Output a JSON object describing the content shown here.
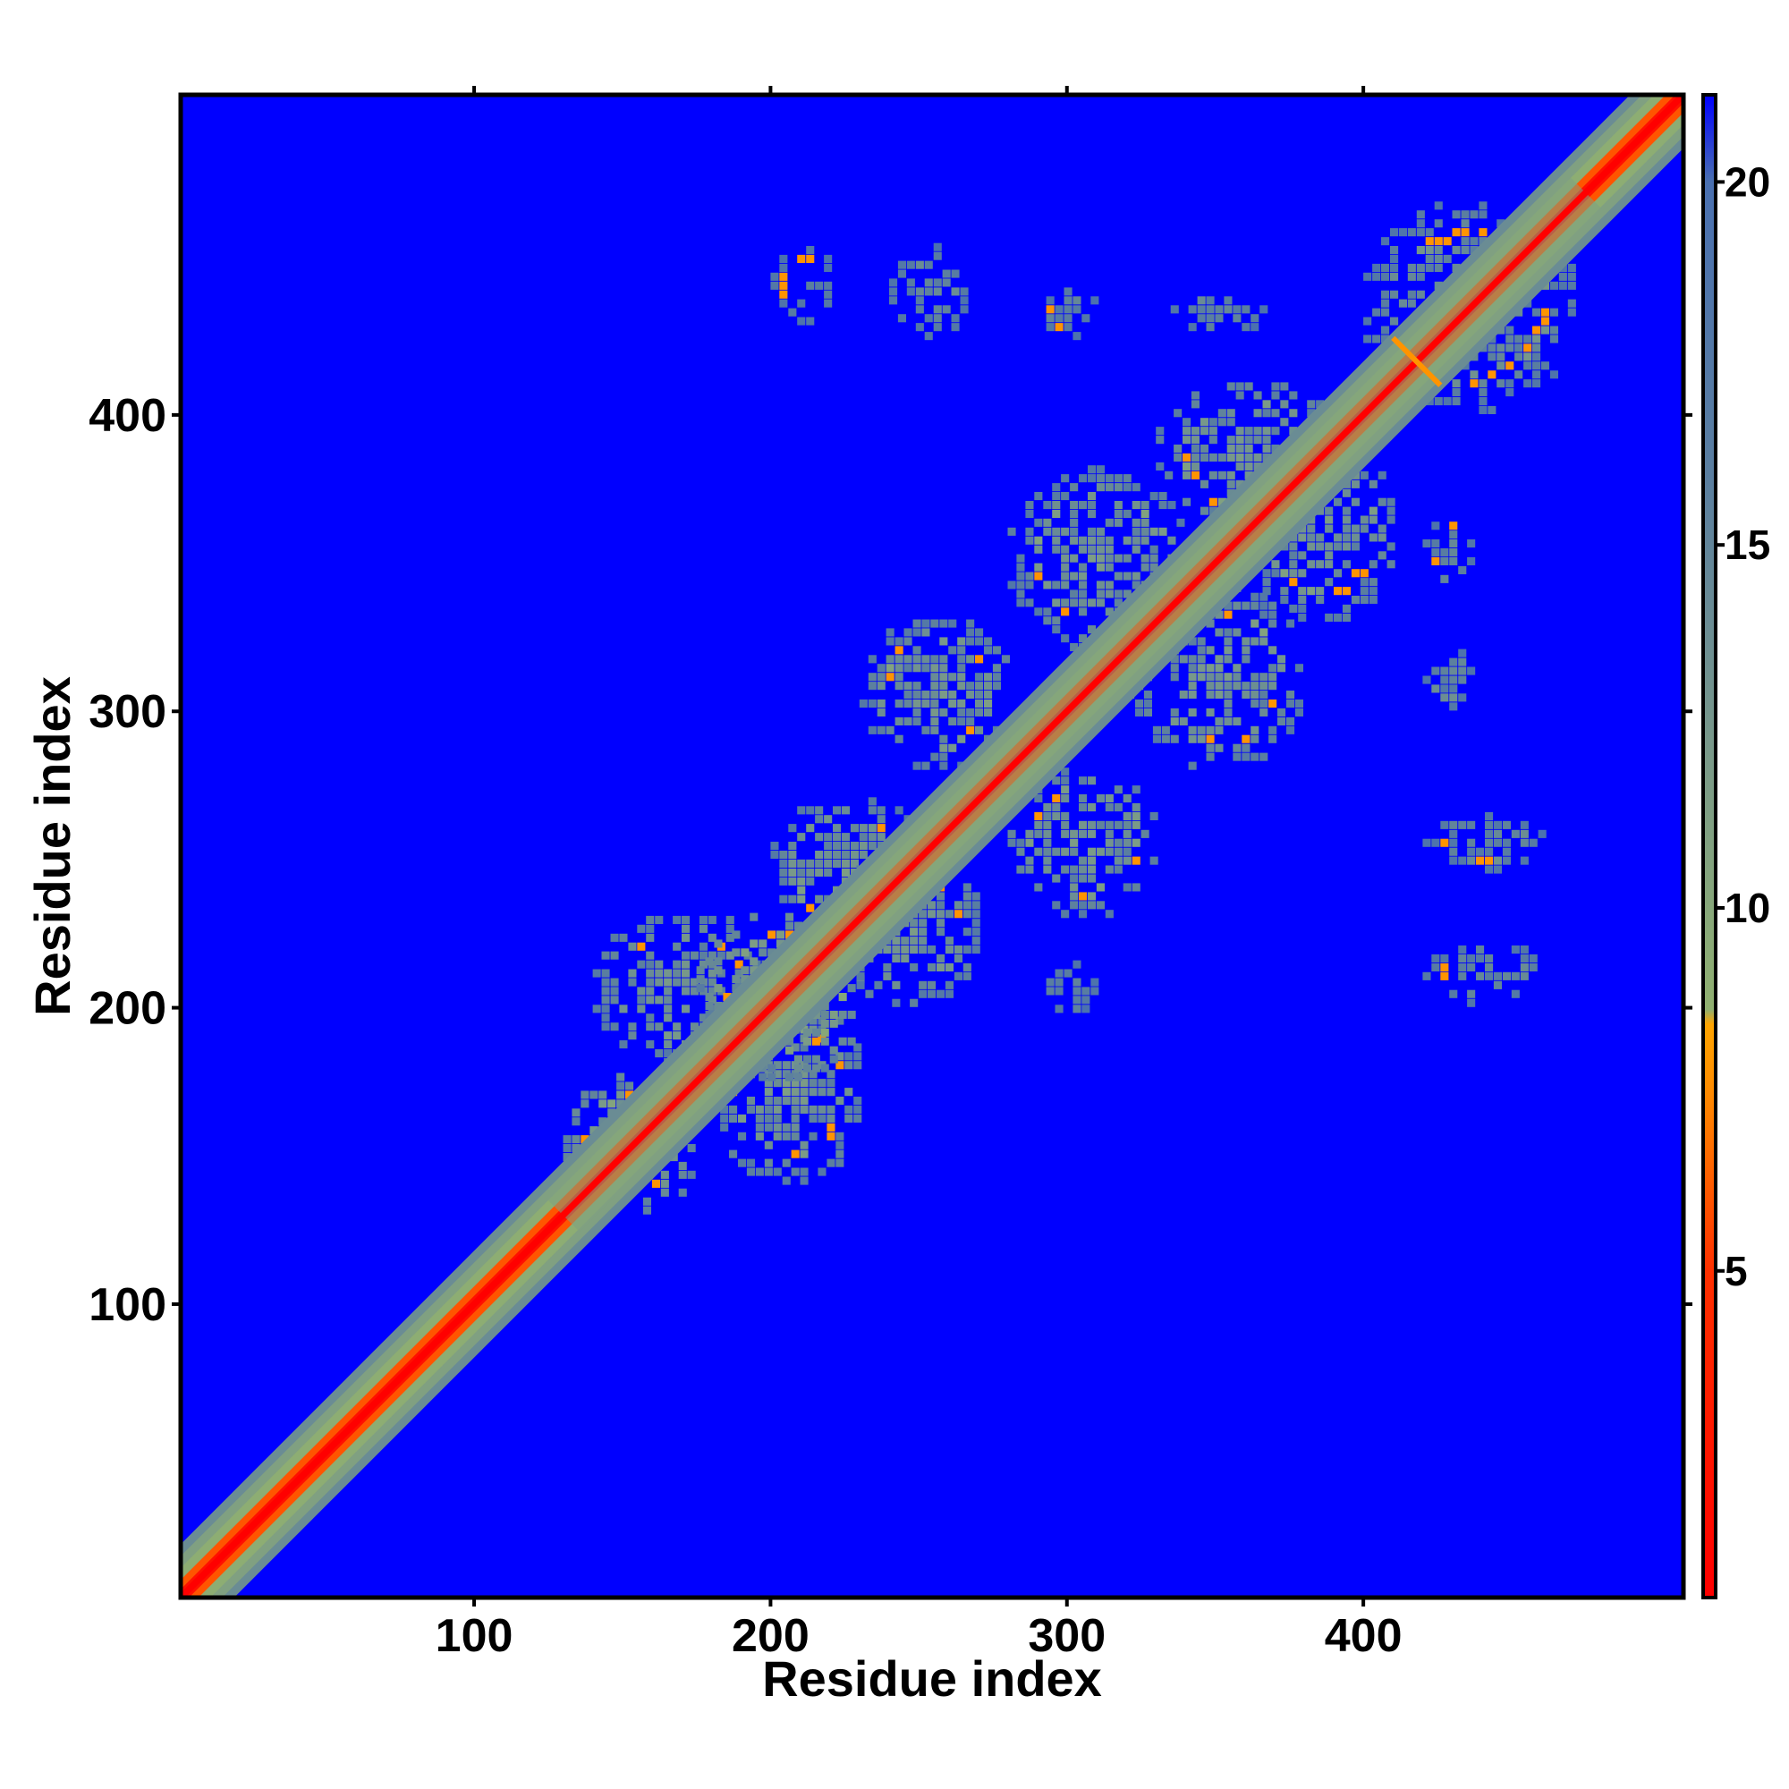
{
  "chart_data": {
    "type": "heatmap",
    "title": "",
    "xlabel": "Residue index",
    "ylabel": "Residue index",
    "xlim": [
      1,
      508
    ],
    "ylim": [
      1,
      508
    ],
    "x_ticks": [
      "100",
      "200",
      "300",
      "400"
    ],
    "y_ticks": [
      "100",
      "200",
      "300",
      "400"
    ],
    "x_tick_values": [
      100,
      200,
      300,
      400
    ],
    "y_tick_values": [
      100,
      200,
      300,
      400
    ],
    "colorbar": {
      "range": [
        0.5,
        21.2
      ],
      "ticks": [
        "5",
        "10",
        "15",
        "20"
      ],
      "tick_values": [
        5,
        10,
        15,
        20
      ],
      "colors": [
        {
          "value": 0.5,
          "color": "#ff0000"
        },
        {
          "value": 5,
          "color": "#ff3000"
        },
        {
          "value": 7.5,
          "color": "#ff8c00"
        },
        {
          "value": 8.4,
          "color": "#ffa500"
        },
        {
          "value": 8.6,
          "color": "#90b070"
        },
        {
          "value": 12,
          "color": "#7a9a88"
        },
        {
          "value": 16,
          "color": "#5a7ea0"
        },
        {
          "value": 20,
          "color": "#4a70b0"
        },
        {
          "value": 21.2,
          "color": "#0000ff"
        }
      ]
    },
    "background_value": 21.2,
    "background_color": "#0000ff",
    "diagonal_value": 0.5,
    "contact_regions": [
      {
        "x": [
          130,
          175
        ],
        "y": [
          130,
          175
        ],
        "level": 11
      },
      {
        "x": [
          140,
          200
        ],
        "y": [
          180,
          230
        ],
        "level": 12
      },
      {
        "x": [
          180,
          230
        ],
        "y": [
          140,
          200
        ],
        "level": 12
      },
      {
        "x": [
          175,
          230
        ],
        "y": [
          175,
          230
        ],
        "level": 11
      },
      {
        "x": [
          200,
          250
        ],
        "y": [
          220,
          270
        ],
        "level": 12
      },
      {
        "x": [
          220,
          270
        ],
        "y": [
          200,
          250
        ],
        "level": 12
      },
      {
        "x": [
          230,
          280
        ],
        "y": [
          280,
          330
        ],
        "level": 12
      },
      {
        "x": [
          280,
          330
        ],
        "y": [
          230,
          280
        ],
        "level": 12
      },
      {
        "x": [
          280,
          340
        ],
        "y": [
          320,
          380
        ],
        "level": 12
      },
      {
        "x": [
          320,
          380
        ],
        "y": [
          280,
          340
        ],
        "level": 12
      },
      {
        "x": [
          330,
          390
        ],
        "y": [
          360,
          410
        ],
        "level": 12
      },
      {
        "x": [
          360,
          410
        ],
        "y": [
          330,
          390
        ],
        "level": 12
      },
      {
        "x": [
          400,
          470
        ],
        "y": [
          400,
          470
        ],
        "level": 13
      },
      {
        "x": [
          200,
          220
        ],
        "y": [
          430,
          455
        ],
        "level": 14
      },
      {
        "x": [
          240,
          265
        ],
        "y": [
          425,
          455
        ],
        "level": 14
      },
      {
        "x": [
          290,
          310
        ],
        "y": [
          425,
          440
        ],
        "level": 14
      },
      {
        "x": [
          335,
          365
        ],
        "y": [
          425,
          440
        ],
        "level": 14
      },
      {
        "x": [
          420,
          435
        ],
        "y": [
          340,
          365
        ],
        "level": 14
      },
      {
        "x": [
          420,
          435
        ],
        "y": [
          300,
          320
        ],
        "level": 14
      },
      {
        "x": [
          420,
          460
        ],
        "y": [
          245,
          265
        ],
        "level": 14
      },
      {
        "x": [
          420,
          460
        ],
        "y": [
          200,
          220
        ],
        "level": 14
      },
      {
        "x": [
          290,
          310
        ],
        "y": [
          195,
          215
        ],
        "level": 15
      }
    ]
  }
}
